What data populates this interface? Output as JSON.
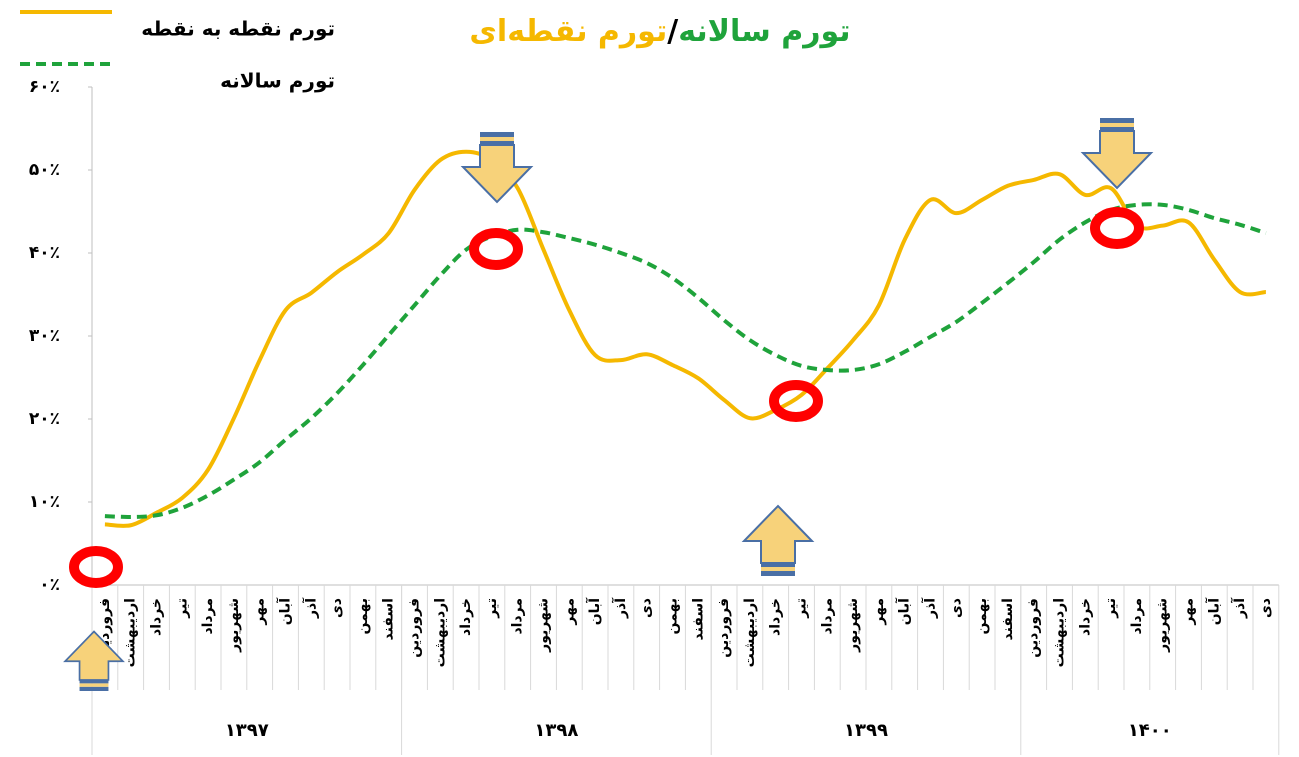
{
  "chart_data": {
    "type": "line",
    "title_parts": [
      {
        "text": "تورم سالانه",
        "color": "#1fa33b"
      },
      {
        "text": "/",
        "color": "#000000"
      },
      {
        "text": "تورم نقطه‌ای",
        "color": "#f5b800"
      }
    ],
    "categories": [
      "فروردین",
      "اردیبهشت",
      "خرداد",
      "تیر",
      "مرداد",
      "شهریور",
      "مهر",
      "آبان",
      "آذر",
      "دی",
      "بهمن",
      "اسفند",
      "فروردین",
      "اردیبهشت",
      "خرداد",
      "تیر",
      "مرداد",
      "شهریور",
      "مهر",
      "آبان",
      "آذر",
      "دی",
      "بهمن",
      "اسفند",
      "فروردین",
      "اردیبهشت",
      "خرداد",
      "تیر",
      "مرداد",
      "شهریور",
      "مهر",
      "آبان",
      "آذر",
      "دی",
      "بهمن",
      "اسفند",
      "فروردین",
      "اردیبهشت",
      "خرداد",
      "تیر",
      "مرداد",
      "شهریور",
      "مهر",
      "آبان",
      "آذر",
      "دی"
    ],
    "year_labels": [
      "۱۳۹۷",
      "۱۳۹۸",
      "۱۳۹۹",
      "۱۴۰۰"
    ],
    "series": [
      {
        "name": "تورم نقطه به نقطه",
        "color": "#f5b800",
        "dash": false,
        "values": [
          7.3,
          7.2,
          8.7,
          10.5,
          13.9,
          20.1,
          27.1,
          33.1,
          35.2,
          37.7,
          39.8,
          42.4,
          47.6,
          51.2,
          52.2,
          51.2,
          47.8,
          40.4,
          33.1,
          27.7,
          27.1,
          27.8,
          26.5,
          24.9,
          22.3,
          20.1,
          21.1,
          22.9,
          26.1,
          29.5,
          33.7,
          41.6,
          46.4,
          44.8,
          46.4,
          48.1,
          48.8,
          49.5,
          47.0,
          47.8,
          43.3,
          43.3,
          43.7,
          39.2,
          35.3,
          35.3
        ]
      },
      {
        "name": "تورم سالانه",
        "color": "#1fa33b",
        "dash": true,
        "values": [
          8.3,
          8.2,
          8.4,
          9.3,
          10.8,
          12.7,
          14.8,
          17.5,
          20.1,
          23.1,
          26.5,
          30.1,
          33.7,
          37.3,
          40.4,
          42.0,
          42.8,
          42.5,
          41.8,
          41.0,
          40.0,
          38.8,
          37.0,
          34.6,
          31.9,
          29.5,
          27.7,
          26.4,
          25.9,
          25.9,
          26.6,
          28.1,
          29.9,
          31.7,
          34.0,
          36.4,
          38.9,
          41.6,
          43.7,
          45.2,
          45.8,
          45.8,
          45.2,
          44.2,
          43.4,
          42.4
        ]
      }
    ],
    "ylim": [
      0,
      60
    ],
    "yticks": [
      {
        "value": 0,
        "label": "۰٪"
      },
      {
        "value": 10,
        "label": "۱۰٪"
      },
      {
        "value": 20,
        "label": "۲۰٪"
      },
      {
        "value": 30,
        "label": "۳۰٪"
      },
      {
        "value": 40,
        "label": "۴۰٪"
      },
      {
        "value": 50,
        "label": "۵۰٪"
      },
      {
        "value": 60,
        "label": "۶۰٪"
      }
    ],
    "grid": false,
    "legend": "top-left"
  }
}
